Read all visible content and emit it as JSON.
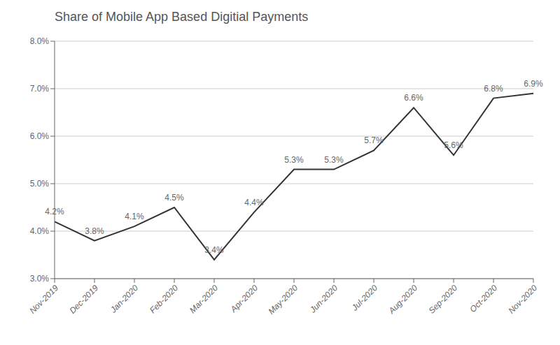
{
  "chart_data": {
    "type": "line",
    "title": "Share of Mobile App Based Digitial Payments",
    "categories": [
      "Nov-2019",
      "Dec-2019",
      "Jan-2020",
      "Feb-2020",
      "Mar-2020",
      "Apr-2020",
      "May-2020",
      "Jun-2020",
      "Jul-2020",
      "Aug-2020",
      "Sep-2020",
      "Oct-2020",
      "Nov-2020"
    ],
    "values": [
      4.2,
      3.8,
      4.1,
      4.5,
      3.4,
      4.4,
      5.3,
      5.3,
      5.7,
      6.6,
      5.6,
      6.8,
      6.9
    ],
    "value_labels": [
      "4.2%",
      "3.8%",
      "4.1%",
      "4.5%",
      "3.4%",
      "4.4%",
      "5.3%",
      "5.3%",
      "5.7%",
      "6.6%",
      "5.6%",
      "6.8%",
      "6.9%"
    ],
    "color": "#333333",
    "ylim": [
      3.0,
      8.0
    ],
    "yticks": [
      {
        "value": 3.0,
        "label": "3.0%"
      },
      {
        "value": 4.0,
        "label": "4.0%"
      },
      {
        "value": 5.0,
        "label": "5.0%"
      },
      {
        "value": 6.0,
        "label": "6.0%"
      },
      {
        "value": 7.0,
        "label": "7.0%"
      },
      {
        "value": 8.0,
        "label": "8.0%"
      }
    ],
    "grid": true,
    "data_labels": true
  }
}
